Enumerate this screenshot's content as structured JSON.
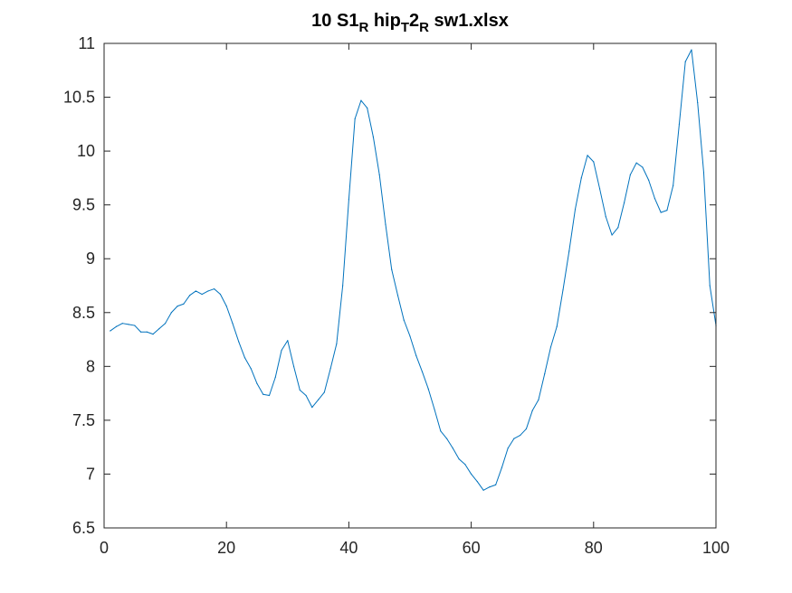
{
  "chart_data": {
    "type": "line",
    "title": {
      "parts": [
        {
          "text": "10 S1",
          "sub": false
        },
        {
          "text": "R",
          "sub": true
        },
        {
          "text": " hip",
          "sub": false
        },
        {
          "text": "T",
          "sub": true
        },
        {
          "text": "2",
          "sub": false
        },
        {
          "text": "R",
          "sub": true
        },
        {
          "text": " sw1.xlsx",
          "sub": false
        }
      ]
    },
    "xlabel": "",
    "ylabel": "",
    "xlim": [
      0,
      100
    ],
    "ylim": [
      6.5,
      11
    ],
    "xticks": [
      0,
      20,
      40,
      60,
      80,
      100
    ],
    "xtick_labels": [
      "0",
      "20",
      "40",
      "60",
      "80",
      "100"
    ],
    "yticks": [
      6.5,
      7,
      7.5,
      8,
      8.5,
      9,
      9.5,
      10,
      10.5,
      11
    ],
    "ytick_labels": [
      "6.5",
      "7",
      "7.5",
      "8",
      "8.5",
      "9",
      "9.5",
      "10",
      "10.5",
      "11"
    ],
    "grid": false,
    "line_color": "#0072BD",
    "axis_color": "#262626",
    "series": [
      {
        "x": [
          1,
          2,
          3,
          4,
          5,
          6,
          7,
          8,
          9,
          10,
          11,
          12,
          13,
          14,
          15,
          16,
          17,
          18,
          19,
          20,
          21,
          22,
          23,
          24,
          25,
          26,
          27,
          28,
          29,
          30,
          31,
          32,
          33,
          34,
          35,
          36,
          37,
          38,
          39,
          40,
          41,
          42,
          43,
          44,
          45,
          46,
          47,
          48,
          49,
          50,
          51,
          52,
          53,
          54,
          55,
          56,
          57,
          58,
          59,
          60,
          61,
          62,
          63,
          64,
          65,
          66,
          67,
          68,
          69,
          70,
          71,
          72,
          73,
          74,
          75,
          76,
          77,
          78,
          79,
          80,
          81,
          82,
          83,
          84,
          85,
          86,
          87,
          88,
          89,
          90,
          91,
          92,
          93,
          94,
          95,
          96,
          97,
          98,
          99,
          100
        ],
        "values": [
          8.33,
          8.37,
          8.4,
          8.39,
          8.38,
          8.32,
          8.32,
          8.3,
          8.35,
          8.4,
          8.5,
          8.56,
          8.58,
          8.66,
          8.7,
          8.67,
          8.7,
          8.72,
          8.67,
          8.56,
          8.4,
          8.23,
          8.08,
          7.98,
          7.84,
          7.74,
          7.73,
          7.9,
          8.15,
          8.24,
          8.0,
          7.78,
          7.73,
          7.62,
          7.69,
          7.76,
          7.98,
          8.21,
          8.75,
          9.55,
          10.3,
          10.47,
          10.4,
          10.13,
          9.78,
          9.32,
          8.9,
          8.66,
          8.43,
          8.28,
          8.1,
          7.95,
          7.79,
          7.6,
          7.4,
          7.33,
          7.24,
          7.14,
          7.09,
          7.0,
          6.93,
          6.85,
          6.88,
          6.9,
          7.06,
          7.24,
          7.33,
          7.36,
          7.42,
          7.59,
          7.69,
          7.93,
          8.18,
          8.37,
          8.71,
          9.07,
          9.46,
          9.75,
          9.96,
          9.9,
          9.65,
          9.39,
          9.22,
          9.29,
          9.52,
          9.78,
          9.89,
          9.85,
          9.73,
          9.56,
          9.43,
          9.45,
          9.68,
          10.25,
          10.83,
          10.94,
          10.45,
          9.8,
          8.75,
          8.38
        ]
      }
    ]
  }
}
